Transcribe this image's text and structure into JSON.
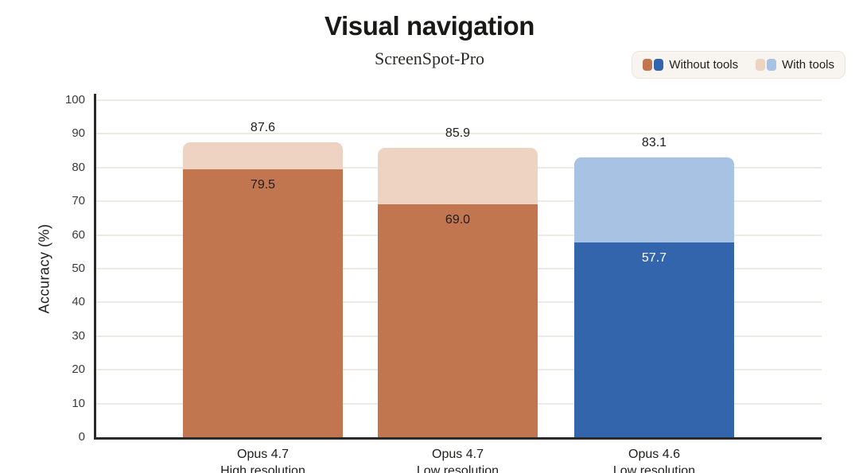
{
  "title": "Visual navigation",
  "subtitle": "ScreenSpot-Pro",
  "legend": {
    "items": [
      {
        "label": "Without tools",
        "swatches": [
          "#c1764f",
          "#3365ad"
        ]
      },
      {
        "label": "With tools",
        "swatches": [
          "#eed3c2",
          "#a7c2e2"
        ]
      }
    ]
  },
  "chart_data": {
    "type": "bar",
    "variant": "overlay (with-tools total bar behind without-tools segment)",
    "title": "Visual navigation",
    "subtitle": "ScreenSpot-Pro",
    "ylabel": "Accuracy (%)",
    "ylim": [
      0,
      100
    ],
    "ytick_step": 10,
    "grid": true,
    "legend_position": "top-right",
    "series_names": [
      "Without tools",
      "With tools"
    ],
    "bars": [
      {
        "category": [
          "Opus 4.7",
          "High resolution"
        ],
        "without_tools": 79.5,
        "with_tools": 87.6,
        "palette": "orange"
      },
      {
        "category": [
          "Opus 4.7",
          "Low resolution"
        ],
        "without_tools": 69.0,
        "with_tools": 85.9,
        "palette": "orange"
      },
      {
        "category": [
          "Opus 4.6",
          "Low resolution"
        ],
        "without_tools": 57.7,
        "with_tools": 83.1,
        "palette": "blue"
      }
    ],
    "palettes": {
      "orange": {
        "without": "#c1764f",
        "with": "#eed3c2",
        "inner_label": "#20201f"
      },
      "blue": {
        "without": "#3365ad",
        "with": "#a7c2e2",
        "inner_label": "#ffffff"
      }
    }
  },
  "colors": {
    "background": "#ffffff",
    "grid": "#edeae3",
    "axis": "#2b2a28",
    "text": "#20201f",
    "legend_background": "#f8f5f0",
    "legend_border": "#eae6de"
  }
}
